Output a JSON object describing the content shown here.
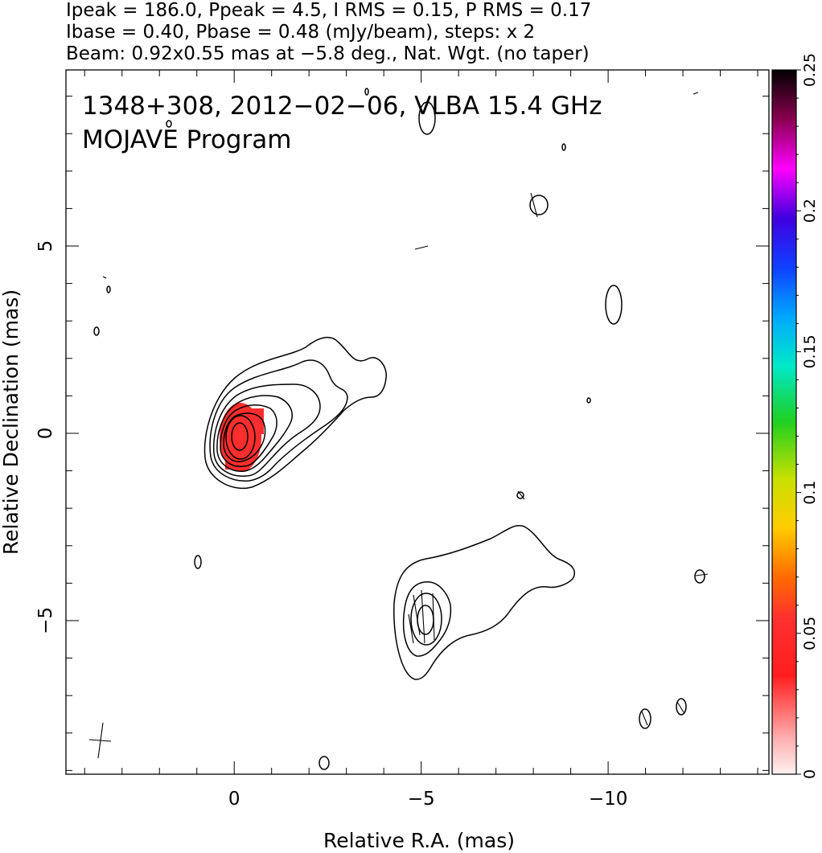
{
  "header": {
    "line1": "Ipeak = 186.0, Ppeak = 4.5, I RMS = 0.15, P RMS = 0.17",
    "line2": "Ibase = 0.40, Pbase = 0.48 (mJy/beam), steps: x 2",
    "line3": "Beam: 0.92x0.55 mas at −5.8 deg., Nat. Wgt. (no taper)"
  },
  "plot": {
    "title_line1": "1348+308, 2012−02−06, VLBA 15.4 GHz",
    "title_line2": "MOJAVE Program"
  },
  "chart_data": {
    "type": "heatmap",
    "xlabel": "Relative R.A. (mas)",
    "ylabel": "Relative Declination (mas)",
    "xlim": [
      4.5,
      -14.3
    ],
    "ylim": [
      -9.1,
      9.7
    ],
    "x_ticks": [
      {
        "value": 0,
        "label": "0"
      },
      {
        "value": -5,
        "label": "−5"
      },
      {
        "value": -10,
        "label": "−10"
      }
    ],
    "y_ticks": [
      {
        "value": -5,
        "label": "−5"
      },
      {
        "value": 0,
        "label": "0"
      },
      {
        "value": 5,
        "label": "5"
      }
    ],
    "colorbar": {
      "range": [
        0,
        0.25
      ],
      "ticks": [
        {
          "value": 0,
          "label": "0"
        },
        {
          "value": 0.05,
          "label": "0.05"
        },
        {
          "value": 0.1,
          "label": "0.1"
        },
        {
          "value": 0.15,
          "label": "0.15"
        },
        {
          "value": 0.2,
          "label": "0.2"
        },
        {
          "value": 0.25,
          "label": "0.25"
        }
      ]
    },
    "polarized_region": {
      "center": [
        0.0,
        0.0
      ],
      "color": "#ff2a2a",
      "edge_color": "#30c030"
    },
    "core_contour_levels": 8,
    "secondary_component": {
      "center": [
        -5.0,
        -5.0
      ],
      "levels": 4
    },
    "beam": {
      "major": 0.92,
      "minor": 0.55,
      "pa_deg": -5.8
    },
    "contour_base_mjy_per_beam": 0.4,
    "contour_step_factor": 2
  }
}
